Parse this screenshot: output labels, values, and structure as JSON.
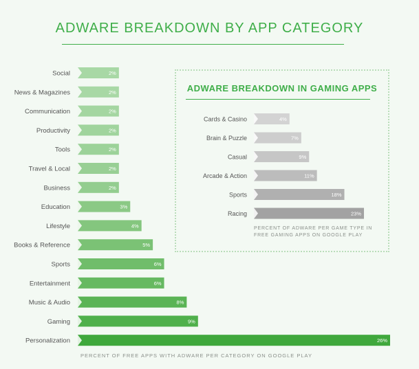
{
  "chart_data": [
    {
      "type": "bar",
      "orientation": "horizontal",
      "title": "ADWARE BREAKDOWN BY APP CATEGORY",
      "caption": "PERCENT OF FREE APPS WITH ADWARE PER CATEGORY ON GOOGLE PLAY",
      "categories": [
        "Social",
        "News & Magazines",
        "Communication",
        "Productivity",
        "Tools",
        "Travel & Local",
        "Business",
        "Education",
        "Lifestyle",
        "Books & Reference",
        "Sports",
        "Entertainment",
        "Music & Audio",
        "Gaming",
        "Personalization"
      ],
      "values": [
        2,
        2,
        2,
        2,
        2,
        2,
        2,
        3,
        4,
        5,
        6,
        6,
        8,
        9,
        26
      ],
      "value_labels": [
        "2%",
        "2%",
        "2%",
        "2%",
        "2%",
        "2%",
        "2%",
        "3%",
        "4%",
        "5%",
        "6%",
        "6%",
        "8%",
        "9%",
        "26%"
      ],
      "xlim": [
        0,
        26
      ],
      "grid": false,
      "bar_colors": [
        "#a8d8a5",
        "#a8d8a5",
        "#a4d6a1",
        "#a0d49d",
        "#9cd299",
        "#98cf94",
        "#93cd8f",
        "#8bc985",
        "#84c67e",
        "#7bc275",
        "#70bd6a",
        "#66b961",
        "#5ab455",
        "#4fb04b",
        "#3fa83c"
      ]
    },
    {
      "type": "bar",
      "orientation": "horizontal",
      "title": "ADWARE BREAKDOWN IN GAMING APPS",
      "caption": "PERCENT OF ADWARE PER GAME TYPE IN FREE GAMING APPS ON GOOGLE PLAY",
      "categories": [
        "Cards & Casino",
        "Brain & Puzzle",
        "Casual",
        "Arcade & Action",
        "Sports",
        "Racing"
      ],
      "values": [
        4,
        7,
        9,
        11,
        18,
        23
      ],
      "value_labels": [
        "4%",
        "7%",
        "9%",
        "11%",
        "18%",
        "23%"
      ],
      "xlim": [
        0,
        23
      ],
      "grid": false,
      "bar_colors": [
        "#d3d3d3",
        "#cdcdcd",
        "#c6c6c6",
        "#bcbcbc",
        "#b0b0b0",
        "#a2a2a2"
      ]
    }
  ]
}
